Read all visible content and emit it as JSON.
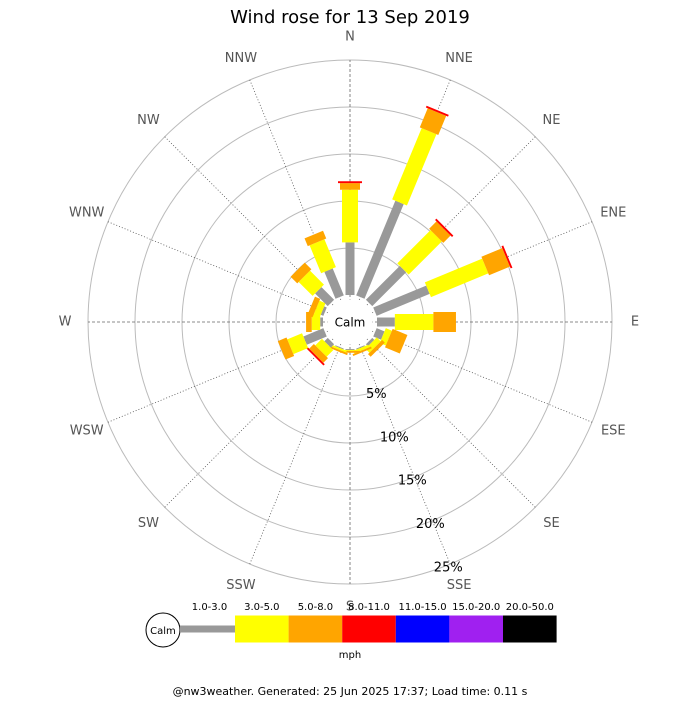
{
  "chart_data": {
    "type": "windrose",
    "title": "Wind rose for 13 Sep 2019",
    "center_label": "Calm",
    "legend_unit": "mph",
    "footer": "@nw3weather. Generated: 25 Jun 2025 17:37; Load time: 0.11 s",
    "categories": [
      "N",
      "NNE",
      "NE",
      "ENE",
      "E",
      "ESE",
      "SE",
      "SSE",
      "S",
      "SSW",
      "SW",
      "WSW",
      "W",
      "WNW",
      "NW",
      "NNW"
    ],
    "series": [
      {
        "name": "1.0-3.0",
        "color": "#999999",
        "values": [
          5.6,
          10.9,
          5.1,
          6.1,
          1.9,
          0.9,
          0.3,
          0.1,
          0.1,
          0.1,
          0.5,
          2.3,
          0.3,
          0.3,
          1.9,
          3.1
        ]
      },
      {
        "name": "3.0-5.0",
        "color": "#ffff00",
        "values": [
          5.6,
          8.2,
          5.0,
          6.6,
          4.1,
          0.7,
          0.6,
          0.3,
          0.1,
          0.2,
          1.0,
          1.7,
          0.9,
          0.7,
          2.1,
          3.2
        ]
      },
      {
        "name": "5.0-8.0",
        "color": "#ffa500",
        "values": [
          0.7,
          2.2,
          1.1,
          2.4,
          2.4,
          1.7,
          0.4,
          0.2,
          0.2,
          0.2,
          0.7,
          1.0,
          0.6,
          0.6,
          1.0,
          0.9
        ]
      },
      {
        "name": "8.0-11.0",
        "color": "#ff0000",
        "values": [
          0.2,
          0.2,
          0.2,
          0.2,
          0,
          0,
          0,
          0,
          0,
          0,
          0.2,
          0,
          0,
          0,
          0,
          0
        ]
      },
      {
        "name": "11.0-15.0",
        "color": "#0000ff",
        "values": [
          0,
          0,
          0,
          0,
          0,
          0,
          0,
          0,
          0,
          0,
          0,
          0,
          0,
          0,
          0,
          0
        ]
      },
      {
        "name": "15.0-20.0",
        "color": "#a020f0",
        "values": [
          0,
          0,
          0,
          0,
          0,
          0,
          0,
          0,
          0,
          0,
          0,
          0,
          0,
          0,
          0,
          0
        ]
      },
      {
        "name": "20.0-50.0",
        "color": "#000000",
        "values": [
          0,
          0,
          0,
          0,
          0,
          0,
          0,
          0,
          0,
          0,
          0,
          0,
          0,
          0,
          0,
          0
        ]
      }
    ],
    "rlim": [
      0,
      25
    ],
    "rticks": [
      {
        "value": 5,
        "label": "5%"
      },
      {
        "value": 10,
        "label": "10%"
      },
      {
        "value": 15,
        "label": "15%"
      },
      {
        "value": 20,
        "label": "20%"
      },
      {
        "value": 25,
        "label": "25%"
      }
    ]
  }
}
